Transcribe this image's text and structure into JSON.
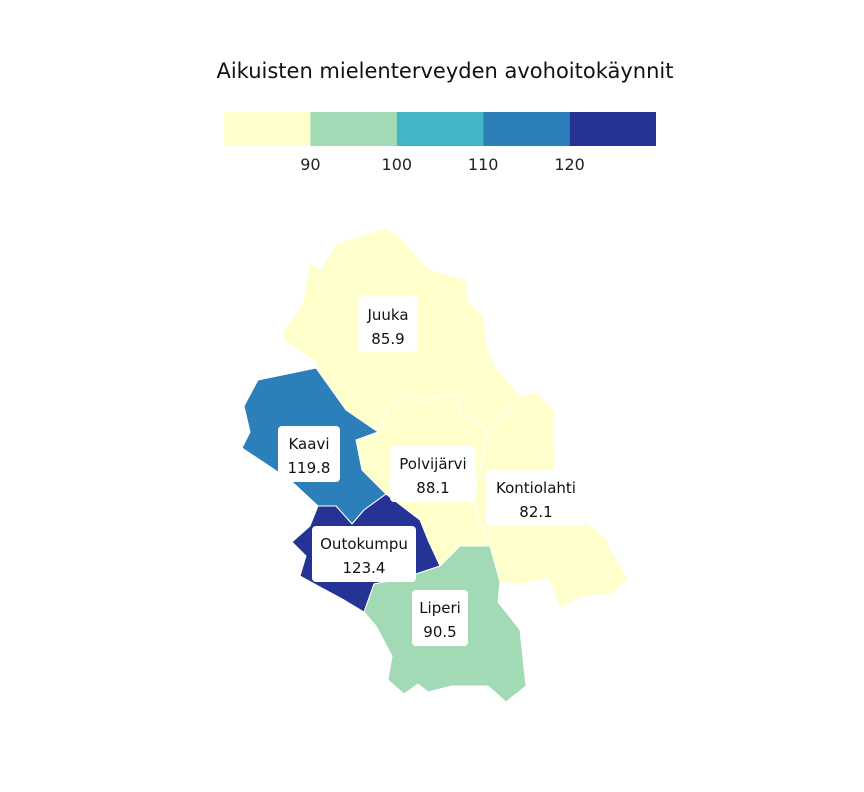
{
  "title": "Aikuisten mielenterveyden avohoitokäynnit",
  "legend": {
    "bins": [
      {
        "color": "#ffffcc"
      },
      {
        "color": "#a1dab4"
      },
      {
        "color": "#41b6c4"
      },
      {
        "color": "#2c7fb8"
      },
      {
        "color": "#253494"
      }
    ],
    "ticks": [
      "90",
      "100",
      "110",
      "120"
    ]
  },
  "regions": [
    {
      "key": "juuka",
      "name": "Juuka",
      "value": "85.9",
      "color": "#ffffcc"
    },
    {
      "key": "kontiolahti",
      "name": "Kontiolahti",
      "value": "82.1",
      "color": "#ffffcc"
    },
    {
      "key": "polvijarvi",
      "name": "Polvijärvi",
      "value": "88.1",
      "color": "#ffffcc"
    },
    {
      "key": "kaavi",
      "name": "Kaavi",
      "value": "119.8",
      "color": "#2c7fb8"
    },
    {
      "key": "outokumpu",
      "name": "Outokumpu",
      "value": "123.4",
      "color": "#253494"
    },
    {
      "key": "liperi",
      "name": "Liperi",
      "value": "90.5",
      "color": "#a1dab4"
    }
  ]
}
